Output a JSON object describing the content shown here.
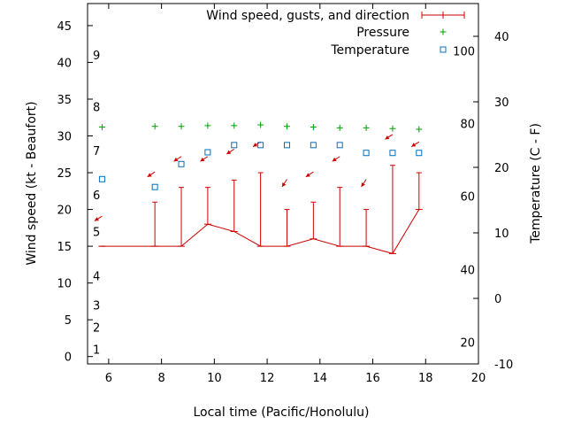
{
  "chart_data": {
    "type": "line",
    "xlabel": "Local time (Pacific/Honolulu)",
    "ylabel": "Wind speed (kt - Beaufort)",
    "y2label": "Temperature (C - F)",
    "xlim": [
      5.2,
      20
    ],
    "ylim": [
      -1,
      48
    ],
    "y2lim": [
      -10,
      45
    ],
    "x_ticks": [
      6,
      8,
      10,
      12,
      14,
      16,
      18,
      20
    ],
    "y_ticks": [
      0,
      5,
      10,
      15,
      20,
      25,
      30,
      35,
      40,
      45
    ],
    "y2_ticks": [
      -10,
      0,
      10,
      20,
      30,
      40
    ],
    "beaufort_labels": [
      {
        "label": "1",
        "kt": 1
      },
      {
        "label": "2",
        "kt": 4
      },
      {
        "label": "3",
        "kt": 7
      },
      {
        "label": "4",
        "kt": 11
      },
      {
        "label": "5",
        "kt": 17
      },
      {
        "label": "6",
        "kt": 22
      },
      {
        "label": "7",
        "kt": 28
      },
      {
        "label": "8",
        "kt": 34
      },
      {
        "label": "9",
        "kt": 41
      }
    ],
    "fahrenheit_labels": [
      {
        "label": "20",
        "c": -6.7
      },
      {
        "label": "40",
        "c": 4.4
      },
      {
        "label": "60",
        "c": 15.6
      },
      {
        "label": "80",
        "c": 26.7
      },
      {
        "label": "100",
        "c": 37.8
      }
    ],
    "legend": "top-right",
    "grid": false,
    "series": [
      {
        "name": "Wind speed, gusts, and direction",
        "color": "#cc0000",
        "x": [
          5.75,
          7.75,
          8.75,
          9.75,
          10.75,
          11.75,
          12.75,
          13.75,
          14.75,
          15.75,
          16.75,
          17.75
        ],
        "values": [
          15,
          15,
          15,
          18,
          17,
          15,
          15,
          16,
          15,
          15,
          14,
          20
        ],
        "gusts": [
          15,
          21,
          23,
          23,
          24,
          25,
          20,
          21,
          23,
          20,
          26,
          25
        ],
        "direction_marks": [
          {
            "x": 5.75,
            "kt": 19.1,
            "dir": "NE"
          },
          {
            "x": 7.75,
            "kt": 25.1,
            "dir": "NE"
          },
          {
            "x": 8.75,
            "kt": 27.2,
            "dir": "NE"
          },
          {
            "x": 9.75,
            "kt": 27.2,
            "dir": "NE"
          },
          {
            "x": 10.75,
            "kt": 28.2,
            "dir": "NE"
          },
          {
            "x": 11.75,
            "kt": 29.2,
            "dir": "NE"
          },
          {
            "x": 12.75,
            "kt": 24.1,
            "dir": "N"
          },
          {
            "x": 13.75,
            "kt": 25.1,
            "dir": "NE"
          },
          {
            "x": 14.75,
            "kt": 27.2,
            "dir": "NE"
          },
          {
            "x": 15.75,
            "kt": 24.1,
            "dir": "N"
          },
          {
            "x": 16.75,
            "kt": 30.2,
            "dir": "NE"
          },
          {
            "x": 17.75,
            "kt": 29.2,
            "dir": "NE"
          }
        ]
      },
      {
        "name": "Pressure",
        "color": "#00a000",
        "x": [
          5.75,
          7.75,
          8.75,
          9.75,
          10.75,
          11.75,
          12.75,
          13.75,
          14.75,
          15.75,
          16.75,
          17.75
        ],
        "values": [
          31.2,
          31.3,
          31.3,
          31.4,
          31.4,
          31.5,
          31.3,
          31.2,
          31.1,
          31.1,
          31.0,
          30.9
        ]
      },
      {
        "name": "Temperature",
        "color": "#0070c0",
        "x": [
          5.75,
          7.75,
          8.75,
          9.75,
          10.75,
          11.75,
          12.75,
          13.75,
          14.75,
          15.75,
          16.75,
          17.75
        ],
        "values": [
          18.2,
          17,
          20.5,
          22.3,
          23.4,
          23.4,
          23.4,
          23.4,
          23.4,
          22.2,
          22.2,
          22.2
        ]
      }
    ]
  }
}
